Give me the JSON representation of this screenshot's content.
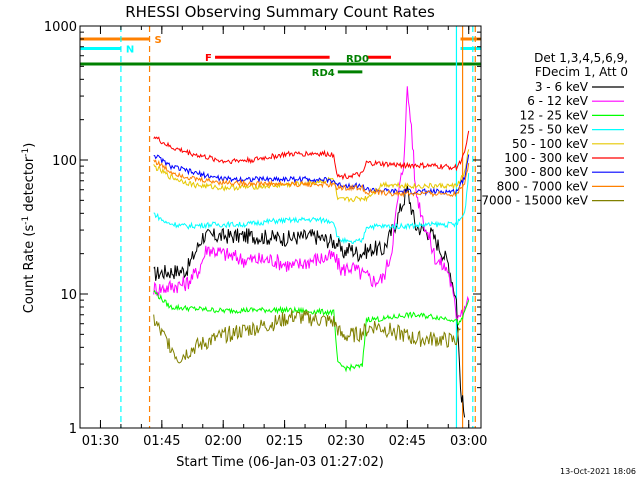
{
  "chart_data": {
    "type": "line",
    "title": "RHESSI Observing Summary Count Rates",
    "xlabel": "Start Time (06-Jan-03 01:27:02)",
    "ylabel_main": "Count Rate (s",
    "ylabel_sup": "-1",
    "ylabel_rest": " detector",
    "ylabel_end": ")",
    "x_range_minutes": [
      -2,
      96
    ],
    "y_range": [
      1,
      1000
    ],
    "y_scale": "log",
    "x_ticks": [
      {
        "label": "01:30",
        "minute": 3
      },
      {
        "label": "01:45",
        "minute": 18
      },
      {
        "label": "02:00",
        "minute": 33
      },
      {
        "label": "02:15",
        "minute": 48
      },
      {
        "label": "02:30",
        "minute": 63
      },
      {
        "label": "02:45",
        "minute": 78
      },
      {
        "label": "03:00",
        "minute": 93
      }
    ],
    "y_ticks": [
      {
        "label": "1",
        "value": 1
      },
      {
        "label": "10",
        "value": 10
      },
      {
        "label": "100",
        "value": 100
      },
      {
        "label": "1000",
        "value": 1000
      }
    ],
    "legend_header": [
      "Det 1,3,4,5,6,9,",
      "FDecim 1, Att 0"
    ],
    "legend_position": "right",
    "series": [
      {
        "name": "3 - 6 keV",
        "color": "#000000",
        "points": [
          [
            16,
            14
          ],
          [
            18,
            14.5
          ],
          [
            24,
            15
          ],
          [
            26,
            20
          ],
          [
            28,
            27
          ],
          [
            33,
            27
          ],
          [
            40,
            27
          ],
          [
            48,
            26
          ],
          [
            55,
            27
          ],
          [
            61,
            24
          ],
          [
            62,
            20
          ],
          [
            64,
            22
          ],
          [
            66,
            20
          ],
          [
            70,
            22
          ],
          [
            72,
            21
          ],
          [
            75,
            33
          ],
          [
            78,
            60
          ],
          [
            80,
            32
          ],
          [
            84,
            28
          ],
          [
            88,
            17
          ],
          [
            90,
            9
          ],
          [
            91,
            2
          ],
          [
            92,
            1.2
          ]
        ]
      },
      {
        "name": "6 - 12 keV",
        "color": "#ff00ff",
        "points": [
          [
            16,
            11
          ],
          [
            18,
            11
          ],
          [
            24,
            12
          ],
          [
            27,
            15
          ],
          [
            29,
            22
          ],
          [
            33,
            20
          ],
          [
            38,
            18
          ],
          [
            45,
            18
          ],
          [
            50,
            16
          ],
          [
            55,
            18
          ],
          [
            60,
            19
          ],
          [
            62,
            15
          ],
          [
            64,
            16
          ],
          [
            67,
            14
          ],
          [
            70,
            12.5
          ],
          [
            72,
            13
          ],
          [
            74,
            20
          ],
          [
            76,
            60
          ],
          [
            77,
            90
          ],
          [
            78,
            330
          ],
          [
            79,
            180
          ],
          [
            80,
            60
          ],
          [
            82,
            35
          ],
          [
            85,
            18
          ],
          [
            88,
            15
          ],
          [
            90,
            7
          ],
          [
            92,
            8
          ],
          [
            93,
            9
          ]
        ]
      },
      {
        "name": "12 - 25 keV",
        "color": "#00ff00",
        "points": [
          [
            16,
            10.5
          ],
          [
            20,
            8
          ],
          [
            25,
            7.8
          ],
          [
            33,
            7.5
          ],
          [
            40,
            7.6
          ],
          [
            48,
            7.6
          ],
          [
            55,
            7.4
          ],
          [
            60,
            7.3
          ],
          [
            61,
            3
          ],
          [
            63,
            2.8
          ],
          [
            67,
            2.9
          ],
          [
            68,
            6.5
          ],
          [
            72,
            6.5
          ],
          [
            78,
            7
          ],
          [
            84,
            6.8
          ],
          [
            89,
            6.5
          ],
          [
            91,
            6
          ],
          [
            93,
            9
          ]
        ]
      },
      {
        "name": "25 - 50 keV",
        "color": "#00ffff",
        "points": [
          [
            16,
            40
          ],
          [
            19,
            34
          ],
          [
            24,
            32
          ],
          [
            30,
            33
          ],
          [
            38,
            33
          ],
          [
            45,
            35
          ],
          [
            55,
            36
          ],
          [
            60,
            35
          ],
          [
            61,
            26
          ],
          [
            64,
            24
          ],
          [
            67,
            25
          ],
          [
            68,
            32
          ],
          [
            75,
            32
          ],
          [
            85,
            33
          ],
          [
            90,
            33
          ],
          [
            92,
            40
          ],
          [
            93,
            80
          ]
        ]
      },
      {
        "name": "50 - 100 keV",
        "color": "#e6c800",
        "points": [
          [
            16,
            90
          ],
          [
            20,
            75
          ],
          [
            26,
            65
          ],
          [
            33,
            62
          ],
          [
            40,
            63
          ],
          [
            48,
            65
          ],
          [
            55,
            68
          ],
          [
            60,
            72
          ],
          [
            61,
            50
          ],
          [
            68,
            52
          ],
          [
            72,
            66
          ],
          [
            80,
            64
          ],
          [
            90,
            64
          ],
          [
            92,
            80
          ],
          [
            93,
            120
          ]
        ]
      },
      {
        "name": "100 - 300 keV",
        "color": "#ff0000",
        "points": [
          [
            16,
            150
          ],
          [
            20,
            125
          ],
          [
            26,
            110
          ],
          [
            33,
            98
          ],
          [
            40,
            100
          ],
          [
            48,
            110
          ],
          [
            55,
            112
          ],
          [
            60,
            110
          ],
          [
            61,
            75
          ],
          [
            67,
            78
          ],
          [
            68,
            95
          ],
          [
            75,
            92
          ],
          [
            85,
            90
          ],
          [
            90,
            88
          ],
          [
            92,
            110
          ],
          [
            93,
            165
          ]
        ]
      },
      {
        "name": "300 - 800 keV",
        "color": "#0000ff",
        "points": [
          [
            16,
            110
          ],
          [
            20,
            90
          ],
          [
            26,
            80
          ],
          [
            33,
            72
          ],
          [
            40,
            72
          ],
          [
            48,
            72
          ],
          [
            55,
            72
          ],
          [
            60,
            70
          ],
          [
            61,
            65
          ],
          [
            67,
            64
          ],
          [
            68,
            60
          ],
          [
            75,
            58
          ],
          [
            85,
            58
          ],
          [
            90,
            58
          ],
          [
            92,
            75
          ],
          [
            93,
            110
          ]
        ]
      },
      {
        "name": "800 - 7000 keV",
        "color": "#ff8000",
        "points": [
          [
            16,
            100
          ],
          [
            20,
            82
          ],
          [
            26,
            72
          ],
          [
            33,
            68
          ],
          [
            40,
            67
          ],
          [
            48,
            66
          ],
          [
            55,
            66
          ],
          [
            60,
            65
          ],
          [
            61,
            62
          ],
          [
            67,
            62
          ],
          [
            68,
            58
          ],
          [
            75,
            56
          ],
          [
            85,
            56
          ],
          [
            90,
            56
          ],
          [
            92,
            68
          ],
          [
            93,
            95
          ]
        ]
      },
      {
        "name": "7000 - 15000 keV",
        "color": "#808000",
        "points": [
          [
            16,
            6.5
          ],
          [
            18,
            5
          ],
          [
            20,
            4.2
          ],
          [
            22,
            3.3
          ],
          [
            26,
            4
          ],
          [
            30,
            4.5
          ],
          [
            34,
            5
          ],
          [
            40,
            5.5
          ],
          [
            45,
            6
          ],
          [
            50,
            6.8
          ],
          [
            55,
            6.5
          ],
          [
            60,
            6.2
          ],
          [
            62,
            4.8
          ],
          [
            66,
            5
          ],
          [
            70,
            5.8
          ],
          [
            75,
            5.2
          ],
          [
            80,
            4.6
          ],
          [
            85,
            4.6
          ],
          [
            88,
            4.5
          ],
          [
            90,
            4.5
          ],
          [
            91,
            5.5
          ]
        ]
      }
    ],
    "flags": [
      {
        "label": "S",
        "color": "#ff8000",
        "value": 800,
        "segments": [
          [
            -2,
            15
          ],
          [
            91,
            96
          ]
        ]
      },
      {
        "label": "N",
        "color": "#00ffff",
        "value": 680,
        "segments": [
          [
            -2,
            8
          ],
          [
            91,
            96
          ]
        ]
      },
      {
        "label": "F",
        "color": "#ff0000",
        "value": 585,
        "segments": [
          [
            31,
            59
          ],
          [
            68,
            74
          ]
        ]
      },
      {
        "label": "RD0",
        "color": "#008000",
        "value": 520,
        "segments": [
          [
            -2,
            96
          ]
        ]
      },
      {
        "label": "RD4",
        "color": "#008000",
        "value": 455,
        "segments": [
          [
            61,
            67
          ]
        ]
      }
    ],
    "vertical_lines": [
      {
        "minute": 8,
        "color": "#00ffff",
        "style": "dash"
      },
      {
        "minute": 15,
        "color": "#ff8000",
        "style": "dash"
      },
      {
        "minute": 90,
        "color": "#00ffff",
        "style": "solid"
      },
      {
        "minute": 91.5,
        "color": "#ff8000",
        "style": "solid"
      },
      {
        "minute": 94,
        "color": "#00ffff",
        "style": "dash"
      },
      {
        "minute": 94.6,
        "color": "#ff8000",
        "style": "dash"
      }
    ]
  },
  "footer_date": "13-Oct-2021 18:06"
}
